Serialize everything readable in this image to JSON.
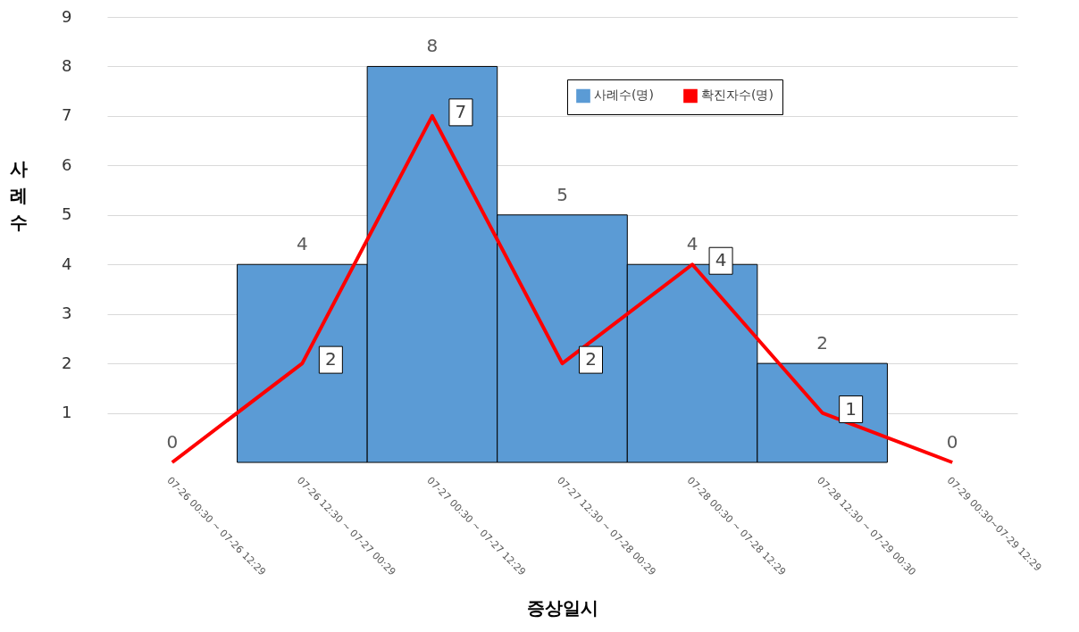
{
  "chart_data": {
    "type": "bar",
    "xlabel": "증상일시",
    "ylabel": "사례수",
    "categories": [
      "07-26 00:30 ~ 07-26 12:29",
      "07-26 12:30 ~ 07-27 00:29",
      "07-27 00:30 ~ 07-27 12:29",
      "07-27 12:30 ~ 07-28 00:29",
      "07-28 00:30 ~ 07-28 12:29",
      "07-28 12:30 ~ 07-29 00:30",
      "07-29 00:30~07-29 12:29"
    ],
    "series": [
      {
        "name": "사례수(명)",
        "color": "#5b9bd5",
        "values": [
          0,
          4,
          8,
          5,
          4,
          2,
          0
        ],
        "value_labels": [
          null,
          "4",
          "8",
          "5",
          "4",
          "2",
          null
        ]
      },
      {
        "name": "확진자수(명)",
        "type": "line",
        "color": "#ff0000",
        "values": [
          0,
          2,
          7,
          2,
          4,
          1,
          0
        ],
        "value_labels": [
          "0",
          "2",
          "7",
          "2",
          "4",
          "1",
          "0"
        ]
      }
    ],
    "ylim": [
      0,
      9
    ],
    "yticks": [
      1,
      2,
      3,
      4,
      5,
      6,
      7,
      8,
      9
    ],
    "grid": "y",
    "legend": "top right",
    "line_style": "solid"
  }
}
